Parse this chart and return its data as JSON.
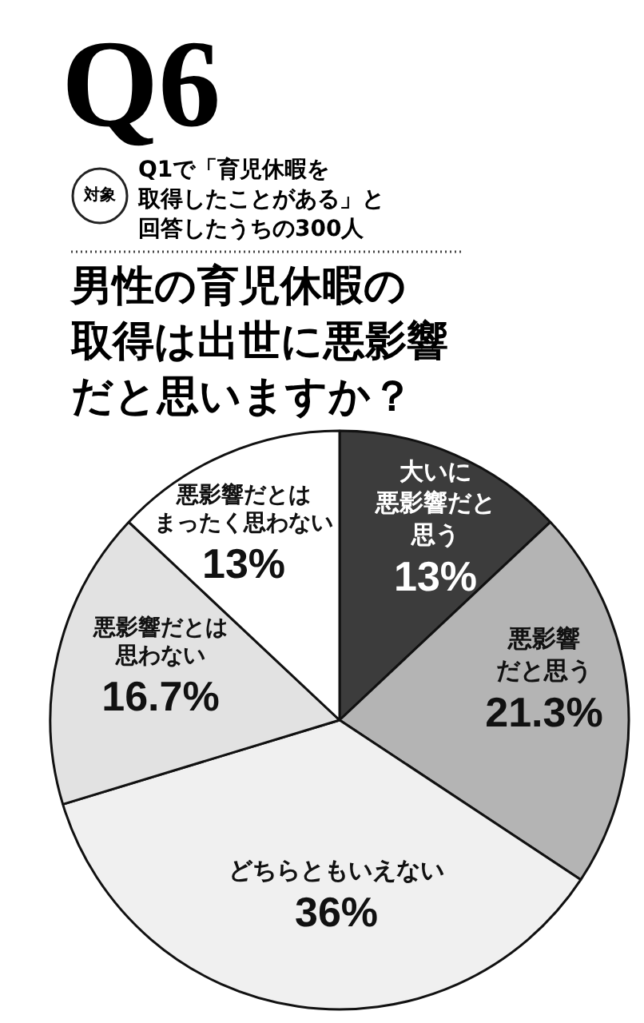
{
  "chart_data": {
    "type": "pie",
    "title": "Q6",
    "subtitle": "男性の育児休暇の取得は出世に悪影響だと思いますか？",
    "annotations": [
      "対象",
      "Q1で「育児休暇を取得したことがある」と回答したうちの300人"
    ],
    "categories": [
      "大いに悪影響だと思う",
      "悪影響だと思う",
      "どちらともいえない",
      "悪影響だとは思わない",
      "悪影響だとはまったく思わない"
    ],
    "values": [
      13,
      21.3,
      36,
      16.7,
      13
    ],
    "value_labels": [
      "13%",
      "21.3%",
      "36%",
      "16.7%",
      "13%"
    ],
    "data_labels": true,
    "colors": [
      "#3c3c3c",
      "#b4b4b4",
      "#f0f0f0",
      "#e2e2e2",
      "#ffffff"
    ]
  }
}
